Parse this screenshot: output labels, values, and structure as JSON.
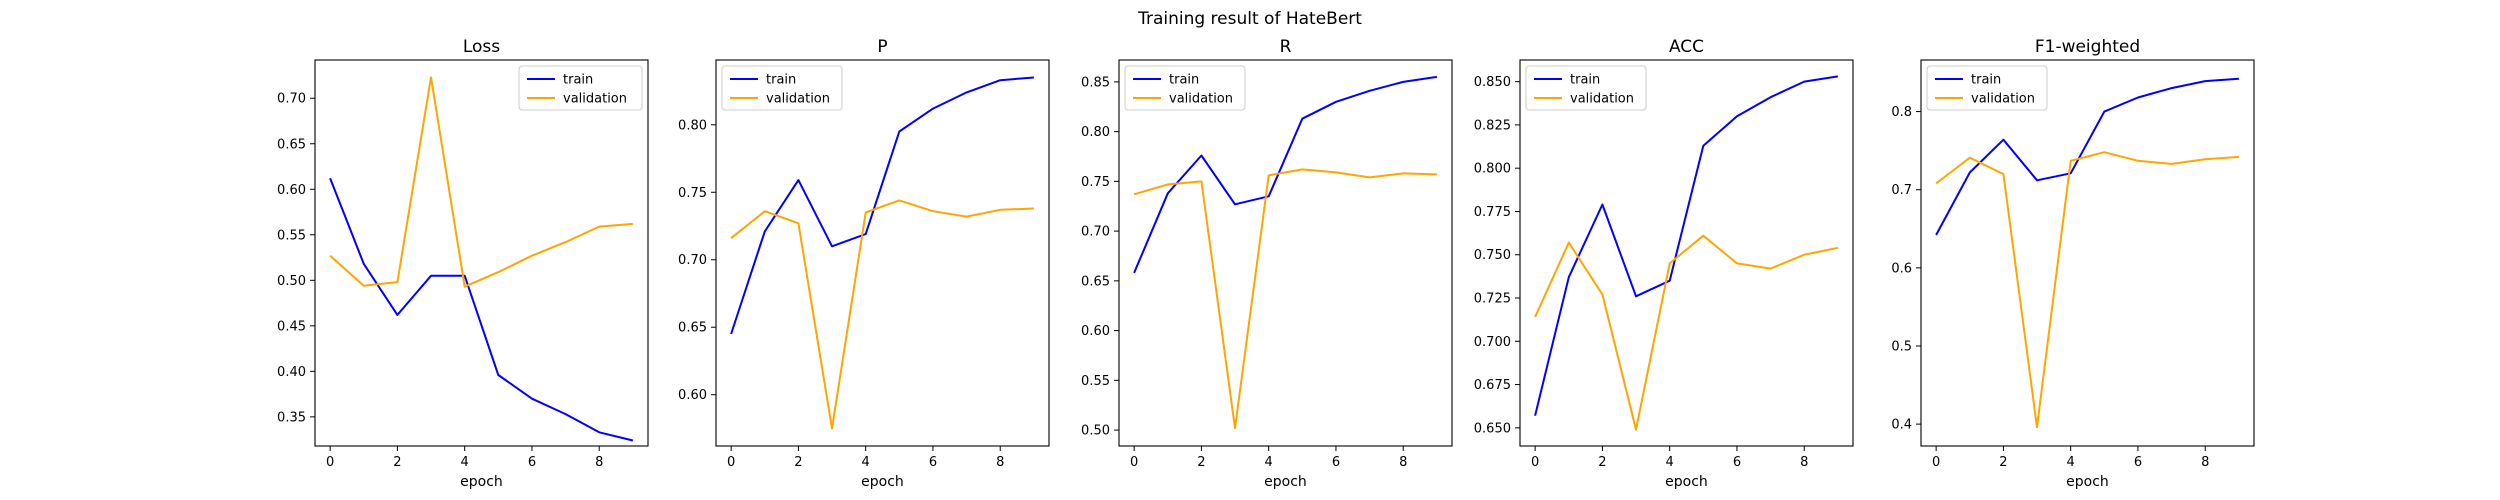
{
  "figure": {
    "suptitle": "Training result of HateBert"
  },
  "chart_data": [
    {
      "type": "line",
      "title": "Loss",
      "xlabel": "epoch",
      "ylabel": "",
      "x": [
        0,
        1,
        2,
        3,
        4,
        5,
        6,
        7,
        8,
        9
      ],
      "xticks": [
        0,
        2,
        4,
        6,
        8
      ],
      "xlim": [
        -0.45,
        9.45
      ],
      "ylim": [
        0.318,
        0.742
      ],
      "yticks": [
        0.35,
        0.4,
        0.45,
        0.5,
        0.55,
        0.6,
        0.65,
        0.7
      ],
      "ytick_labels": [
        "0.35",
        "0.40",
        "0.45",
        "0.50",
        "0.55",
        "0.60",
        "0.65",
        "0.70"
      ],
      "legend": "upper right",
      "series": [
        {
          "name": "train",
          "color": "#0000ff",
          "values": [
            0.612,
            0.518,
            0.462,
            0.505,
            0.505,
            0.396,
            0.37,
            0.353,
            0.333,
            0.324
          ]
        },
        {
          "name": "validation",
          "color": "#ffa500",
          "values": [
            0.527,
            0.494,
            0.498,
            0.723,
            0.493,
            0.509,
            0.527,
            0.542,
            0.559,
            0.562
          ]
        }
      ]
    },
    {
      "type": "line",
      "title": "P",
      "xlabel": "epoch",
      "ylabel": "",
      "x": [
        0,
        1,
        2,
        3,
        4,
        5,
        6,
        7,
        8,
        9
      ],
      "xticks": [
        0,
        2,
        4,
        6,
        8
      ],
      "xlim": [
        -0.45,
        9.45
      ],
      "ylim": [
        0.562,
        0.848
      ],
      "yticks": [
        0.6,
        0.65,
        0.7,
        0.75,
        0.8
      ],
      "ytick_labels": [
        "0.60",
        "0.65",
        "0.70",
        "0.75",
        "0.80"
      ],
      "legend": "upper left",
      "series": [
        {
          "name": "train",
          "color": "#0000ff",
          "values": [
            0.645,
            0.721,
            0.759,
            0.71,
            0.719,
            0.795,
            0.812,
            0.824,
            0.833,
            0.835
          ]
        },
        {
          "name": "validation",
          "color": "#ffa500",
          "values": [
            0.716,
            0.736,
            0.727,
            0.575,
            0.735,
            0.744,
            0.736,
            0.732,
            0.737,
            0.738
          ]
        }
      ]
    },
    {
      "type": "line",
      "title": "R",
      "xlabel": "epoch",
      "ylabel": "",
      "x": [
        0,
        1,
        2,
        3,
        4,
        5,
        6,
        7,
        8,
        9
      ],
      "xticks": [
        0,
        2,
        4,
        6,
        8
      ],
      "xlim": [
        -0.45,
        9.45
      ],
      "ylim": [
        0.484,
        0.872
      ],
      "yticks": [
        0.5,
        0.55,
        0.6,
        0.65,
        0.7,
        0.75,
        0.8,
        0.85
      ],
      "ytick_labels": [
        "0.50",
        "0.55",
        "0.60",
        "0.65",
        "0.70",
        "0.75",
        "0.80",
        "0.85"
      ],
      "legend": "upper left",
      "series": [
        {
          "name": "train",
          "color": "#0000ff",
          "values": [
            0.658,
            0.738,
            0.776,
            0.727,
            0.735,
            0.813,
            0.83,
            0.841,
            0.85,
            0.855
          ]
        },
        {
          "name": "validation",
          "color": "#ffa500",
          "values": [
            0.737,
            0.747,
            0.75,
            0.502,
            0.756,
            0.762,
            0.759,
            0.754,
            0.758,
            0.757
          ]
        }
      ]
    },
    {
      "type": "line",
      "title": "ACC",
      "xlabel": "epoch",
      "ylabel": "",
      "x": [
        0,
        1,
        2,
        3,
        4,
        5,
        6,
        7,
        8,
        9
      ],
      "xticks": [
        0,
        2,
        4,
        6,
        8
      ],
      "xlim": [
        -0.45,
        9.45
      ],
      "ylim": [
        0.6395,
        0.8625
      ],
      "yticks": [
        0.65,
        0.675,
        0.7,
        0.725,
        0.75,
        0.775,
        0.8,
        0.825,
        0.85
      ],
      "ytick_labels": [
        "0.650",
        "0.675",
        "0.700",
        "0.725",
        "0.750",
        "0.775",
        "0.800",
        "0.825",
        "0.850"
      ],
      "legend": "upper left",
      "series": [
        {
          "name": "train",
          "color": "#0000ff",
          "values": [
            0.657,
            0.737,
            0.779,
            0.726,
            0.735,
            0.813,
            0.83,
            0.841,
            0.85,
            0.853
          ]
        },
        {
          "name": "validation",
          "color": "#ffa500",
          "values": [
            0.714,
            0.757,
            0.727,
            0.649,
            0.745,
            0.761,
            0.745,
            0.742,
            0.75,
            0.754
          ]
        }
      ]
    },
    {
      "type": "line",
      "title": "F1-weighted",
      "xlabel": "epoch",
      "ylabel": "",
      "x": [
        0,
        1,
        2,
        3,
        4,
        5,
        6,
        7,
        8,
        9
      ],
      "xticks": [
        0,
        2,
        4,
        6,
        8
      ],
      "xlim": [
        -0.45,
        9.45
      ],
      "ylim": [
        0.372,
        0.866
      ],
      "yticks": [
        0.4,
        0.5,
        0.6,
        0.7,
        0.8
      ],
      "ytick_labels": [
        "0.4",
        "0.5",
        "0.6",
        "0.7",
        "0.8"
      ],
      "legend": "upper left",
      "series": [
        {
          "name": "train",
          "color": "#0000ff",
          "values": [
            0.642,
            0.722,
            0.764,
            0.712,
            0.721,
            0.8,
            0.818,
            0.83,
            0.839,
            0.842
          ]
        },
        {
          "name": "validation",
          "color": "#ffa500",
          "values": [
            0.708,
            0.741,
            0.72,
            0.396,
            0.737,
            0.748,
            0.737,
            0.733,
            0.739,
            0.742
          ]
        }
      ]
    }
  ]
}
